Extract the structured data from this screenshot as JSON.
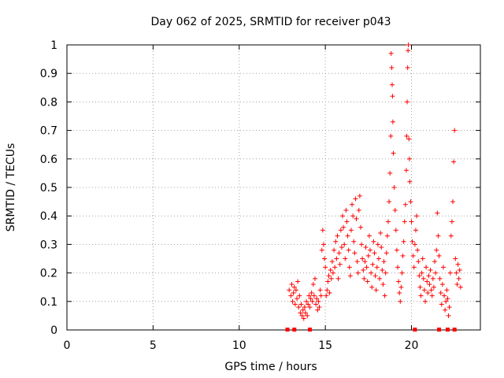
{
  "chart_data": {
    "type": "scatter",
    "title": "Day 062 of 2025, SRMTID for receiver p043",
    "xlabel": "GPS time / hours",
    "ylabel": "SRMTID / TECUs",
    "xlim": [
      0,
      24
    ],
    "ylim": [
      0,
      1
    ],
    "x_ticks": [
      0,
      5,
      10,
      15,
      20
    ],
    "y_ticks": [
      0,
      0.1,
      0.2,
      0.3,
      0.4,
      0.5,
      0.6,
      0.7,
      0.8,
      0.9,
      1
    ],
    "x_tick_labels": [
      "0",
      "5",
      "10",
      "15",
      "20"
    ],
    "y_tick_labels": [
      "0",
      "0.1",
      "0.2",
      "0.3",
      "0.4",
      "0.5",
      "0.6",
      "0.7",
      "0.8",
      "0.9",
      "1"
    ],
    "grid": true,
    "marker": "+",
    "color": "#ff0000",
    "series": [
      {
        "name": "SRMTID",
        "points": [
          [
            12.9,
            0.14
          ],
          [
            13.0,
            0.12
          ],
          [
            13.05,
            0.16
          ],
          [
            13.1,
            0.1
          ],
          [
            13.15,
            0.13
          ],
          [
            13.2,
            0.15
          ],
          [
            13.25,
            0.09
          ],
          [
            13.3,
            0.14
          ],
          [
            13.35,
            0.11
          ],
          [
            13.4,
            0.17
          ],
          [
            13.45,
            0.08
          ],
          [
            13.5,
            0.12
          ],
          [
            13.55,
            0.06
          ],
          [
            13.6,
            0.09
          ],
          [
            13.65,
            0.05
          ],
          [
            13.7,
            0.07
          ],
          [
            13.75,
            0.04
          ],
          [
            13.8,
            0.08
          ],
          [
            13.85,
            0.06
          ],
          [
            13.9,
            0.1
          ],
          [
            13.95,
            0.05
          ],
          [
            14.0,
            0.09
          ],
          [
            14.05,
            0.12
          ],
          [
            14.1,
            0.08
          ],
          [
            14.15,
            0.11
          ],
          [
            14.2,
            0.13
          ],
          [
            14.25,
            0.1
          ],
          [
            14.3,
            0.16
          ],
          [
            14.35,
            0.12
          ],
          [
            14.4,
            0.18
          ],
          [
            14.45,
            0.09
          ],
          [
            14.5,
            0.11
          ],
          [
            14.55,
            0.07
          ],
          [
            14.6,
            0.1
          ],
          [
            14.65,
            0.08
          ],
          [
            14.7,
            0.14
          ],
          [
            14.75,
            0.12
          ],
          [
            14.8,
            0.28
          ],
          [
            14.85,
            0.35
          ],
          [
            14.9,
            0.3
          ],
          [
            14.95,
            0.25
          ],
          [
            15.0,
            0.22
          ],
          [
            15.05,
            0.12
          ],
          [
            15.1,
            0.14
          ],
          [
            15.15,
            0.17
          ],
          [
            15.2,
            0.19
          ],
          [
            15.25,
            0.13
          ],
          [
            15.3,
            0.21
          ],
          [
            15.35,
            0.18
          ],
          [
            15.4,
            0.24
          ],
          [
            15.45,
            0.2
          ],
          [
            15.5,
            0.28
          ],
          [
            15.55,
            0.22
          ],
          [
            15.6,
            0.31
          ],
          [
            15.65,
            0.25
          ],
          [
            15.7,
            0.33
          ],
          [
            15.75,
            0.18
          ],
          [
            15.8,
            0.27
          ],
          [
            15.85,
            0.23
          ],
          [
            15.9,
            0.35
          ],
          [
            15.95,
            0.29
          ],
          [
            16.0,
            0.4
          ],
          [
            16.05,
            0.36
          ],
          [
            16.1,
            0.3
          ],
          [
            16.15,
            0.25
          ],
          [
            16.2,
            0.42
          ],
          [
            16.25,
            0.38
          ],
          [
            16.3,
            0.33
          ],
          [
            16.35,
            0.28
          ],
          [
            16.4,
            0.22
          ],
          [
            16.45,
            0.19
          ],
          [
            16.5,
            0.35
          ],
          [
            16.55,
            0.44
          ],
          [
            16.6,
            0.4
          ],
          [
            16.65,
            0.31
          ],
          [
            16.7,
            0.27
          ],
          [
            16.75,
            0.46
          ],
          [
            16.8,
            0.39
          ],
          [
            16.85,
            0.24
          ],
          [
            16.9,
            0.2
          ],
          [
            16.95,
            0.42
          ],
          [
            17.0,
            0.47
          ],
          [
            17.05,
            0.36
          ],
          [
            17.1,
            0.3
          ],
          [
            17.15,
            0.25
          ],
          [
            17.2,
            0.21
          ],
          [
            17.25,
            0.18
          ],
          [
            17.3,
            0.24
          ],
          [
            17.35,
            0.29
          ],
          [
            17.4,
            0.22
          ],
          [
            17.45,
            0.17
          ],
          [
            17.5,
            0.26
          ],
          [
            17.55,
            0.33
          ],
          [
            17.6,
            0.28
          ],
          [
            17.65,
            0.2
          ],
          [
            17.7,
            0.15
          ],
          [
            17.75,
            0.23
          ],
          [
            17.8,
            0.31
          ],
          [
            17.85,
            0.27
          ],
          [
            17.9,
            0.19
          ],
          [
            17.95,
            0.14
          ],
          [
            18.0,
            0.22
          ],
          [
            18.05,
            0.3
          ],
          [
            18.1,
            0.25
          ],
          [
            18.15,
            0.18
          ],
          [
            18.2,
            0.34
          ],
          [
            18.25,
            0.29
          ],
          [
            18.3,
            0.21
          ],
          [
            18.35,
            0.16
          ],
          [
            18.4,
            0.24
          ],
          [
            18.45,
            0.12
          ],
          [
            18.5,
            0.2
          ],
          [
            18.55,
            0.27
          ],
          [
            18.6,
            0.33
          ],
          [
            18.65,
            0.38
          ],
          [
            18.7,
            0.45
          ],
          [
            18.75,
            0.55
          ],
          [
            18.8,
            0.68
          ],
          [
            18.82,
            0.97
          ],
          [
            18.85,
            0.92
          ],
          [
            18.88,
            0.86
          ],
          [
            18.9,
            0.82
          ],
          [
            18.92,
            0.73
          ],
          [
            18.95,
            0.62
          ],
          [
            19.0,
            0.5
          ],
          [
            19.05,
            0.42
          ],
          [
            19.1,
            0.35
          ],
          [
            19.15,
            0.28
          ],
          [
            19.2,
            0.22
          ],
          [
            19.25,
            0.17
          ],
          [
            19.3,
            0.13
          ],
          [
            19.35,
            0.1
          ],
          [
            19.4,
            0.15
          ],
          [
            19.45,
            0.2
          ],
          [
            19.5,
            0.26
          ],
          [
            19.55,
            0.31
          ],
          [
            19.6,
            0.38
          ],
          [
            19.65,
            0.44
          ],
          [
            19.7,
            0.56
          ],
          [
            19.72,
            0.68
          ],
          [
            19.75,
            0.8
          ],
          [
            19.78,
            0.92
          ],
          [
            19.8,
            0.98
          ],
          [
            19.82,
            1.0
          ],
          [
            19.85,
            0.67
          ],
          [
            19.88,
            0.6
          ],
          [
            19.9,
            0.52
          ],
          [
            19.95,
            0.45
          ],
          [
            20.0,
            0.38
          ],
          [
            20.05,
            0.31
          ],
          [
            20.1,
            0.26
          ],
          [
            20.15,
            0.22
          ],
          [
            20.2,
            0.3
          ],
          [
            20.25,
            0.35
          ],
          [
            20.3,
            0.4
          ],
          [
            20.35,
            0.28
          ],
          [
            20.4,
            0.24
          ],
          [
            20.45,
            0.19
          ],
          [
            20.5,
            0.15
          ],
          [
            20.55,
            0.12
          ],
          [
            20.6,
            0.2
          ],
          [
            20.65,
            0.25
          ],
          [
            20.7,
            0.18
          ],
          [
            20.75,
            0.14
          ],
          [
            20.8,
            0.1
          ],
          [
            20.85,
            0.22
          ],
          [
            20.9,
            0.17
          ],
          [
            20.95,
            0.13
          ],
          [
            21.0,
            0.19
          ],
          [
            21.05,
            0.16
          ],
          [
            21.1,
            0.21
          ],
          [
            21.15,
            0.14
          ],
          [
            21.2,
            0.12
          ],
          [
            21.25,
            0.18
          ],
          [
            21.3,
            0.15
          ],
          [
            21.35,
            0.24
          ],
          [
            21.4,
            0.2
          ],
          [
            21.45,
            0.28
          ],
          [
            21.5,
            0.41
          ],
          [
            21.55,
            0.33
          ],
          [
            21.6,
            0.26
          ],
          [
            21.65,
            0.18
          ],
          [
            21.7,
            0.13
          ],
          [
            21.75,
            0.09
          ],
          [
            21.8,
            0.16
          ],
          [
            21.85,
            0.22
          ],
          [
            21.9,
            0.12
          ],
          [
            21.95,
            0.07
          ],
          [
            22.0,
            0.1
          ],
          [
            22.05,
            0.14
          ],
          [
            22.1,
            0.11
          ],
          [
            22.15,
            0.05
          ],
          [
            22.2,
            0.08
          ],
          [
            22.25,
            0.2
          ],
          [
            22.3,
            0.33
          ],
          [
            22.35,
            0.38
          ],
          [
            22.4,
            0.45
          ],
          [
            22.45,
            0.59
          ],
          [
            22.5,
            0.7
          ],
          [
            22.55,
            0.25
          ],
          [
            22.6,
            0.2
          ],
          [
            22.65,
            0.16
          ],
          [
            22.7,
            0.23
          ],
          [
            22.75,
            0.18
          ],
          [
            22.8,
            0.21
          ],
          [
            22.85,
            0.15
          ]
        ]
      }
    ],
    "gaps_markers": [
      12.8,
      13.2,
      14.1,
      20.2,
      21.6,
      22.1,
      22.5
    ]
  }
}
